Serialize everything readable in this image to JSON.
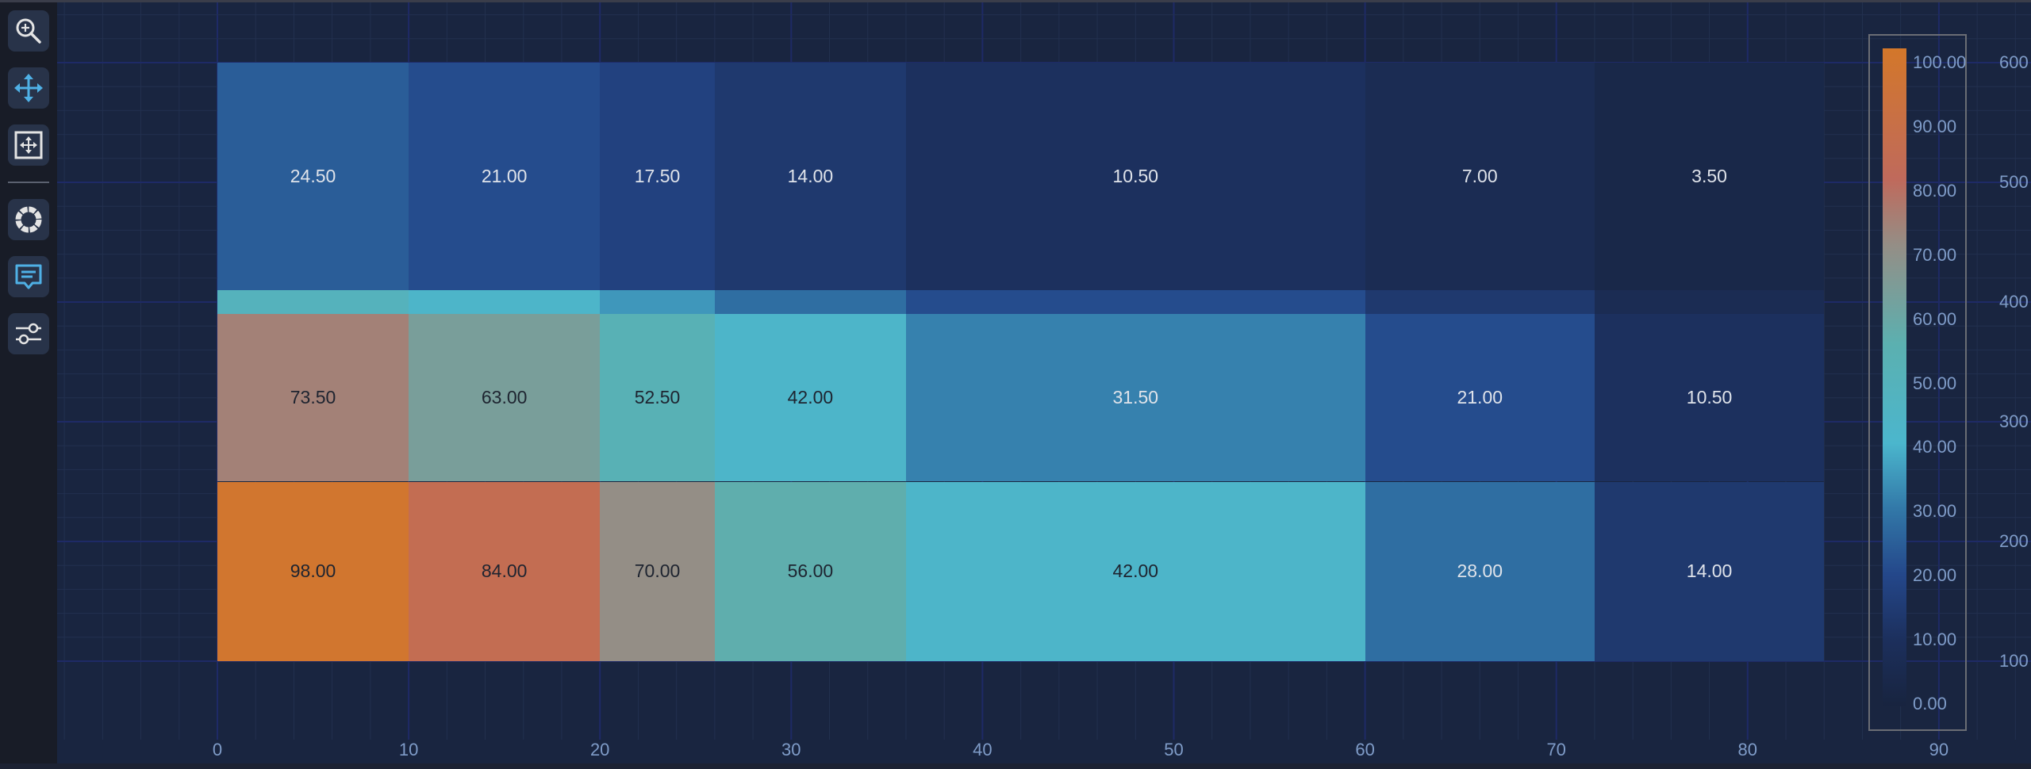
{
  "toolbar": {
    "buttons": [
      {
        "name": "zoom-in",
        "icon": "zoom-in-icon",
        "active": false
      },
      {
        "name": "pan",
        "icon": "move-arrows-icon",
        "active": true
      },
      {
        "name": "zoom-to-fit",
        "icon": "fit-extents-icon",
        "active": false
      },
      {
        "name": "rotate",
        "icon": "ring-gear-icon",
        "active": false
      },
      {
        "name": "tooltip",
        "icon": "chat-bubble-icon",
        "active": true
      },
      {
        "name": "settings",
        "icon": "sliders-icon",
        "active": false
      }
    ]
  },
  "colors": {
    "background": "#192540",
    "toolbar_bg": "#181c27",
    "button_bg": "#283349",
    "icon_active": "#4fb1e6",
    "icon_inactive": "#e4e4e4",
    "axis_label": "#7f9cc8",
    "legend_border": "#6a6d74"
  },
  "chart_data": {
    "type": "heatmap",
    "title": "",
    "xlabel": "",
    "ylabel": "",
    "x_ticks": [
      "0",
      "10",
      "20",
      "30",
      "40",
      "50",
      "60",
      "70",
      "80",
      "90"
    ],
    "y_ticks": [
      "600",
      "500",
      "400",
      "300",
      "200",
      "100"
    ],
    "xlim": [
      0,
      90
    ],
    "ylim": [
      100,
      600
    ],
    "grid": true,
    "x_edges": [
      0,
      10,
      20,
      26,
      36,
      60,
      72,
      84
    ],
    "y_edges": [
      600,
      410,
      390,
      250,
      100
    ],
    "rows": [
      {
        "y_range": [
          410,
          600
        ],
        "values": [
          24.5,
          21.0,
          17.5,
          14.0,
          10.5,
          7.0,
          3.5
        ],
        "labels": [
          "24.50",
          "21.00",
          "17.50",
          "14.00",
          "10.50",
          "7.00",
          "3.50"
        ]
      },
      {
        "y_range": [
          390,
          410
        ],
        "values": [
          49.0,
          42.0,
          35.0,
          28.0,
          21.0,
          14.0,
          7.0
        ],
        "labels": [
          "",
          "",
          "",
          "",
          "",
          "",
          ""
        ]
      },
      {
        "y_range": [
          250,
          390
        ],
        "values": [
          73.5,
          63.0,
          52.5,
          42.0,
          31.5,
          21.0,
          10.5
        ],
        "labels": [
          "73.50",
          "63.00",
          "52.50",
          "42.00",
          "31.50",
          "21.00",
          "10.50"
        ]
      },
      {
        "y_range": [
          100,
          250
        ],
        "values": [
          98.0,
          84.0,
          70.0,
          56.0,
          42.0,
          28.0,
          14.0
        ],
        "labels": [
          "98.00",
          "84.00",
          "70.00",
          "56.00",
          "42.00",
          "28.00",
          "14.00"
        ]
      }
    ],
    "colorscale": {
      "min": 0,
      "max": 100,
      "ticks": [
        "100.00",
        "90.00",
        "80.00",
        "70.00",
        "60.00",
        "50.00",
        "40.00",
        "30.00",
        "20.00",
        "10.00",
        "0.00"
      ],
      "stops": [
        {
          "v": 0,
          "c": "#18243f"
        },
        {
          "v": 10,
          "c": "#1c2f5c"
        },
        {
          "v": 20,
          "c": "#24478a"
        },
        {
          "v": 30,
          "c": "#3278a8"
        },
        {
          "v": 40,
          "c": "#4bb6cd"
        },
        {
          "v": 55,
          "c": "#5bb0b0"
        },
        {
          "v": 70,
          "c": "#948e86"
        },
        {
          "v": 80,
          "c": "#bf6a5c"
        },
        {
          "v": 100,
          "c": "#d3772a"
        }
      ],
      "legend_position": "right"
    }
  }
}
